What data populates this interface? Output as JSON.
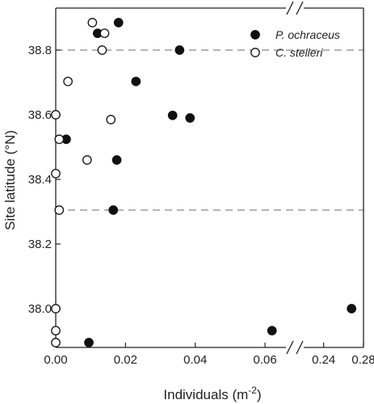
{
  "chart_data": {
    "type": "scatter",
    "xlabel": "Individuals (m",
    "xlabel_superscript": "-2",
    "xlabel_close": ")",
    "ylabel": "Site latitude (°N)",
    "ylim": [
      37.88,
      38.93
    ],
    "x_axis_break": {
      "left_range": [
        0,
        0.066
      ],
      "right_range": [
        0.22,
        0.28
      ]
    },
    "x_tick_values": [
      0,
      0.02,
      0.04,
      0.06,
      0.24,
      0.28
    ],
    "x_tick_labels": [
      "0.00",
      "0.02",
      "0.04",
      "0.06",
      "0.24",
      "0.28"
    ],
    "y_tick_values": [
      38.0,
      38.2,
      38.4,
      38.6,
      38.8
    ],
    "y_tick_labels": [
      "38.0",
      "38.2",
      "38.4",
      "38.6",
      "38.8"
    ],
    "reference_lines_y": [
      38.8,
      38.305
    ],
    "reference_line_color": "#888888",
    "grid": false,
    "legend_position": "top-right",
    "series": [
      {
        "name": "P. ochraceus",
        "marker": "filled-circle",
        "color": "#111111",
        "points": [
          {
            "x": 0.018,
            "y": 38.885
          },
          {
            "x": 0.012,
            "y": 38.852
          },
          {
            "x": 0.0355,
            "y": 38.8
          },
          {
            "x": 0.023,
            "y": 38.703
          },
          {
            "x": 0.0335,
            "y": 38.598
          },
          {
            "x": 0.0385,
            "y": 38.59
          },
          {
            "x": 0.003,
            "y": 38.524
          },
          {
            "x": 0.0175,
            "y": 38.46
          },
          {
            "x": 0.0165,
            "y": 38.305
          },
          {
            "x": 0.268,
            "y": 38.0
          },
          {
            "x": 0.062,
            "y": 37.932
          },
          {
            "x": 0.0095,
            "y": 37.895
          }
        ]
      },
      {
        "name": "C. stelleri",
        "marker": "open-circle",
        "color": "#111111",
        "points": [
          {
            "x": 0.0105,
            "y": 38.885
          },
          {
            "x": 0.014,
            "y": 38.852
          },
          {
            "x": 0.0133,
            "y": 38.8
          },
          {
            "x": 0.0035,
            "y": 38.703
          },
          {
            "x": 0.0,
            "y": 38.6
          },
          {
            "x": 0.0158,
            "y": 38.585
          },
          {
            "x": 0.001,
            "y": 38.524
          },
          {
            "x": 0.009,
            "y": 38.46
          },
          {
            "x": 0.0,
            "y": 38.418
          },
          {
            "x": 0.001,
            "y": 38.305
          },
          {
            "x": 0.0,
            "y": 38.0
          },
          {
            "x": 0.0,
            "y": 37.932
          },
          {
            "x": 0.0,
            "y": 37.895
          }
        ]
      }
    ]
  }
}
